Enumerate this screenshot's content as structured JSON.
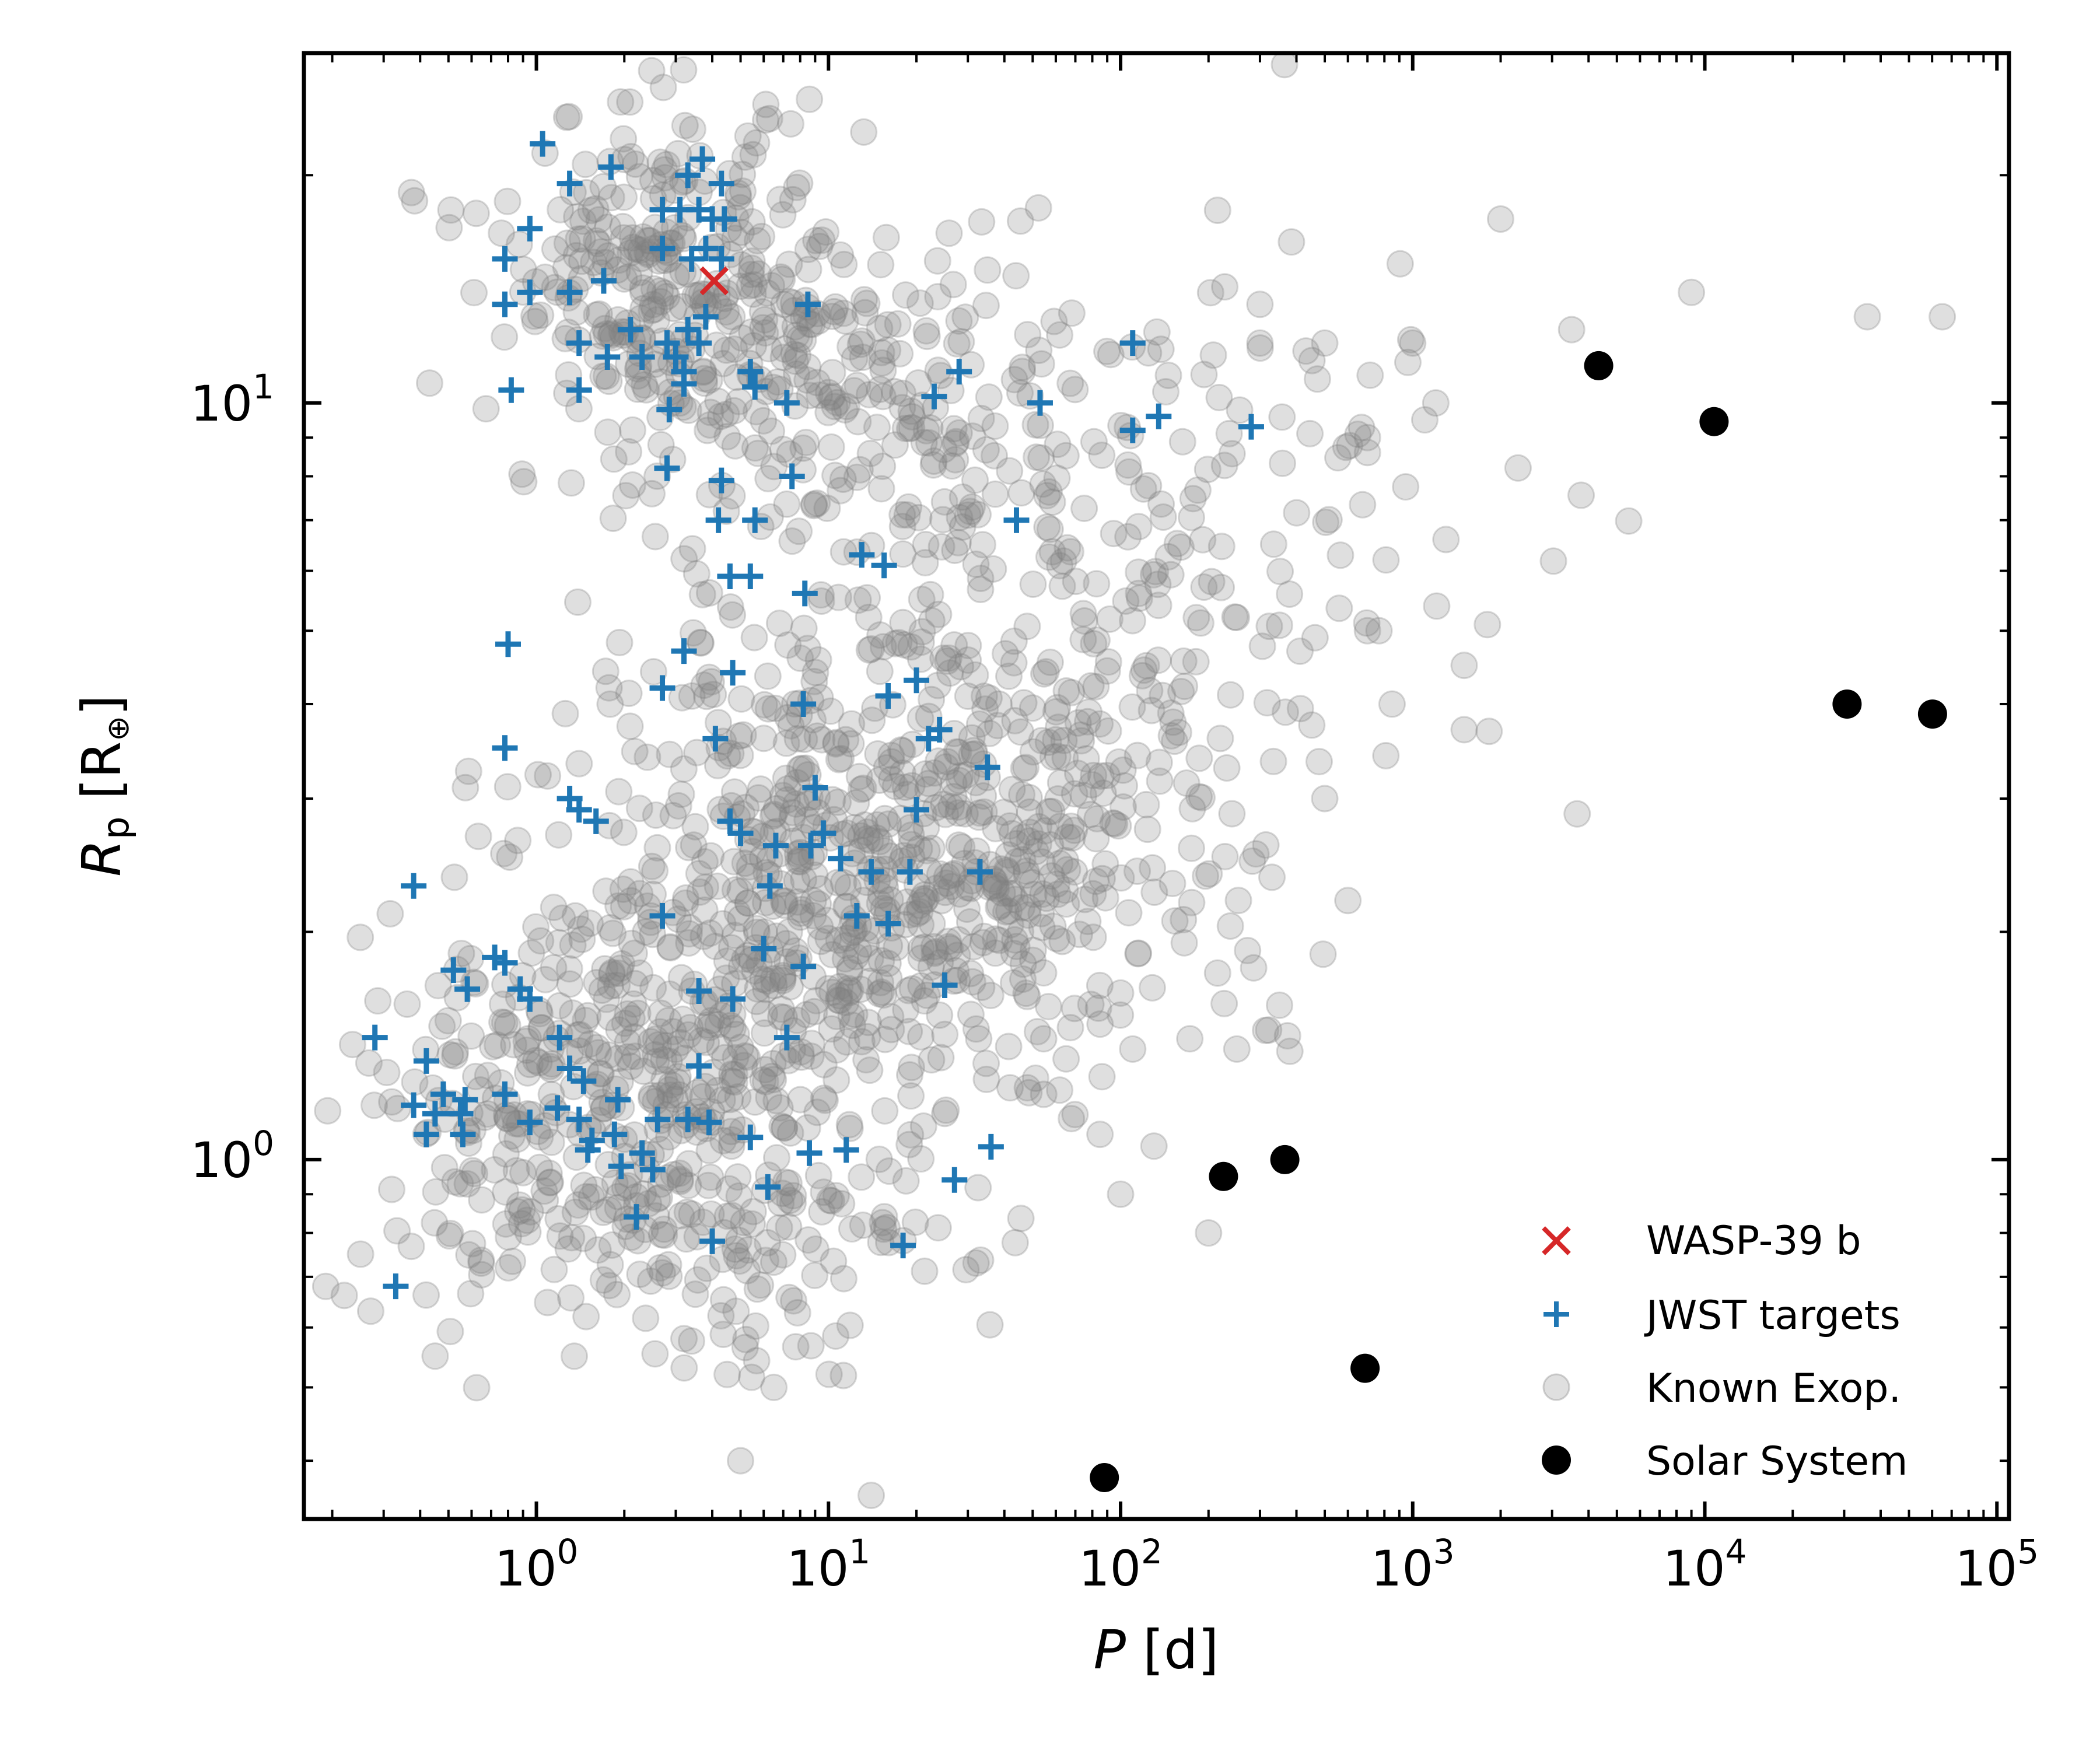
{
  "chart_data": {
    "type": "scatter",
    "xlabel": {
      "var": "P",
      "unit": "[d]"
    },
    "ylabel": {
      "var": "R",
      "sub": "p",
      "unit_open": "[R",
      "unit_sub": "⊕",
      "unit_close": "]"
    },
    "x_scale": "log",
    "y_scale": "log",
    "xlim": [
      0.16,
      110000
    ],
    "ylim": [
      0.335,
      29
    ],
    "x_ticks": [
      {
        "base": "10",
        "exp": "0",
        "value": 1
      },
      {
        "base": "10",
        "exp": "1",
        "value": 10
      },
      {
        "base": "10",
        "exp": "2",
        "value": 100
      },
      {
        "base": "10",
        "exp": "3",
        "value": 1000
      },
      {
        "base": "10",
        "exp": "4",
        "value": 10000
      },
      {
        "base": "10",
        "exp": "5",
        "value": 100000
      }
    ],
    "y_ticks": [
      {
        "base": "10",
        "exp": "0",
        "value": 1
      },
      {
        "base": "10",
        "exp": "1",
        "value": 10
      }
    ],
    "grid": false,
    "legend_position": "lower-right",
    "series": [
      {
        "name": "Known Exop.",
        "marker": "circle",
        "color": "#808080",
        "opacity": 0.25,
        "clusters": [
          {
            "cx": 2.7,
            "cy": 1.25,
            "sx": 0.38,
            "sy": 0.12,
            "n": 320
          },
          {
            "cx": 12.0,
            "cy": 2.3,
            "sx": 0.55,
            "sy": 0.17,
            "n": 560
          },
          {
            "cx": 40.0,
            "cy": 2.7,
            "sx": 0.5,
            "sy": 0.16,
            "n": 220
          },
          {
            "cx": 2.6,
            "cy": 15.5,
            "sx": 0.28,
            "sy": 0.1,
            "n": 210
          },
          {
            "cx": 5.0,
            "cy": 11.5,
            "sx": 0.35,
            "sy": 0.09,
            "n": 140
          },
          {
            "cx": 30.0,
            "cy": 10.0,
            "sx": 0.6,
            "sy": 0.1,
            "n": 160
          },
          {
            "cx": 60.0,
            "cy": 5.5,
            "sx": 0.6,
            "sy": 0.13,
            "n": 140
          },
          {
            "cx": 400.0,
            "cy": 7.0,
            "sx": 0.55,
            "sy": 0.25,
            "n": 40
          },
          {
            "cx": 0.6,
            "cy": 1.1,
            "sx": 0.25,
            "sy": 0.12,
            "n": 80
          },
          {
            "cx": 4.0,
            "cy": 0.75,
            "sx": 0.35,
            "sy": 0.08,
            "n": 90
          }
        ],
        "points": [
          [
            2000,
            17.5
          ],
          [
            3500,
            12.5
          ],
          [
            9000,
            14.0
          ],
          [
            36000,
            13.0
          ],
          [
            65000,
            13.0
          ],
          [
            700,
            9.0
          ],
          [
            1200,
            10.0
          ],
          [
            1000,
            12.0
          ],
          [
            500,
            12.0
          ],
          [
            300,
            12.0
          ],
          [
            1500,
            4.5
          ],
          [
            700,
            5.0
          ],
          [
            850,
            4.0
          ],
          [
            500,
            3.0
          ],
          [
            600,
            2.2
          ],
          [
            350,
            1.6
          ],
          [
            250,
            1.4
          ],
          [
            110,
            1.4
          ],
          [
            85,
            1.08
          ],
          [
            0.25,
            0.75
          ],
          [
            0.19,
            0.68
          ],
          [
            0.45,
            0.55
          ],
          [
            5.0,
            0.4
          ],
          [
            3.2,
            0.58
          ],
          [
            14,
            0.36
          ],
          [
            6.5,
            0.5
          ],
          [
            4.5,
            0.52
          ],
          [
            200,
            0.8
          ],
          [
            32,
            0.73
          ],
          [
            100,
            0.9
          ],
          [
            1300,
            6.6
          ],
          [
            700,
            8.6
          ],
          [
            1100,
            9.5
          ],
          [
            300,
            13.5
          ],
          [
            1500,
            3.7
          ]
        ]
      },
      {
        "name": "JWST targets",
        "marker": "plus",
        "color": "#1f77b4",
        "points": [
          [
            1.05,
            22.0
          ],
          [
            1.3,
            19.5
          ],
          [
            1.8,
            20.5
          ],
          [
            3.3,
            20.0
          ],
          [
            3.7,
            21.0
          ],
          [
            4.3,
            19.5
          ],
          [
            2.7,
            18.0
          ],
          [
            3.1,
            18.0
          ],
          [
            3.6,
            18.0
          ],
          [
            4.0,
            17.5
          ],
          [
            4.4,
            17.5
          ],
          [
            0.95,
            17.0
          ],
          [
            0.78,
            15.5
          ],
          [
            0.78,
            13.5
          ],
          [
            0.95,
            14.0
          ],
          [
            1.3,
            14.0
          ],
          [
            1.7,
            14.5
          ],
          [
            2.7,
            16.0
          ],
          [
            3.4,
            15.5
          ],
          [
            3.8,
            16.0
          ],
          [
            4.3,
            15.5
          ],
          [
            2.1,
            12.5
          ],
          [
            2.3,
            11.5
          ],
          [
            2.8,
            12.0
          ],
          [
            3.0,
            11.5
          ],
          [
            3.3,
            12.5
          ],
          [
            3.6,
            12.0
          ],
          [
            3.2,
            11.0
          ],
          [
            8.5,
            13.5
          ],
          [
            1.4,
            12.0
          ],
          [
            1.75,
            11.5
          ],
          [
            3.8,
            13.0
          ],
          [
            5.4,
            11.0
          ],
          [
            5.6,
            10.5
          ],
          [
            7.2,
            10.0
          ],
          [
            0.82,
            10.4
          ],
          [
            1.4,
            10.4
          ],
          [
            2.85,
            9.8
          ],
          [
            3.2,
            10.6
          ],
          [
            23,
            10.2
          ],
          [
            28,
            11.0
          ],
          [
            53,
            10.0
          ],
          [
            110,
            12.0
          ],
          [
            110,
            9.2
          ],
          [
            135,
            9.6
          ],
          [
            280,
            9.3
          ],
          [
            2.8,
            8.2
          ],
          [
            4.3,
            7.9
          ],
          [
            7.5,
            8.0
          ],
          [
            4.2,
            7.0
          ],
          [
            5.6,
            7.0
          ],
          [
            44,
            7.0
          ],
          [
            13,
            6.3
          ],
          [
            15.5,
            6.1
          ],
          [
            4.6,
            5.9
          ],
          [
            5.4,
            5.9
          ],
          [
            8.3,
            5.6
          ],
          [
            0.8,
            4.8
          ],
          [
            3.2,
            4.7
          ],
          [
            4.7,
            4.4
          ],
          [
            2.7,
            4.2
          ],
          [
            8.2,
            4.0
          ],
          [
            16,
            4.1
          ],
          [
            20,
            4.3
          ],
          [
            4.1,
            3.6
          ],
          [
            22,
            3.6
          ],
          [
            24,
            3.7
          ],
          [
            0.78,
            3.5
          ],
          [
            35,
            3.3
          ],
          [
            1.3,
            3.0
          ],
          [
            1.4,
            2.9
          ],
          [
            1.6,
            2.8
          ],
          [
            9,
            3.1
          ],
          [
            20,
            2.9
          ],
          [
            4.6,
            2.8
          ],
          [
            5.0,
            2.7
          ],
          [
            6.6,
            2.6
          ],
          [
            8.7,
            2.6
          ],
          [
            9.6,
            2.7
          ],
          [
            11,
            2.5
          ],
          [
            14,
            2.4
          ],
          [
            19,
            2.4
          ],
          [
            33,
            2.4
          ],
          [
            0.38,
            2.3
          ],
          [
            6.3,
            2.3
          ],
          [
            2.7,
            2.1
          ],
          [
            12.5,
            2.1
          ],
          [
            16,
            2.05
          ],
          [
            0.72,
            1.85
          ],
          [
            0.78,
            1.82
          ],
          [
            0.52,
            1.78
          ],
          [
            6.0,
            1.9
          ],
          [
            8.2,
            1.8
          ],
          [
            0.58,
            1.68
          ],
          [
            0.88,
            1.68
          ],
          [
            0.95,
            1.63
          ],
          [
            3.6,
            1.67
          ],
          [
            4.7,
            1.63
          ],
          [
            25,
            1.7
          ],
          [
            0.28,
            1.45
          ],
          [
            1.2,
            1.45
          ],
          [
            7.2,
            1.45
          ],
          [
            0.42,
            1.35
          ],
          [
            1.3,
            1.32
          ],
          [
            1.45,
            1.27
          ],
          [
            3.6,
            1.33
          ],
          [
            0.48,
            1.22
          ],
          [
            0.78,
            1.22
          ],
          [
            0.57,
            1.2
          ],
          [
            1.9,
            1.2
          ],
          [
            0.38,
            1.18
          ],
          [
            0.45,
            1.15
          ],
          [
            0.55,
            1.15
          ],
          [
            0.95,
            1.12
          ],
          [
            1.18,
            1.17
          ],
          [
            1.4,
            1.13
          ],
          [
            2.6,
            1.13
          ],
          [
            3.3,
            1.13
          ],
          [
            3.9,
            1.12
          ],
          [
            0.42,
            1.08
          ],
          [
            0.56,
            1.08
          ],
          [
            1.55,
            1.06
          ],
          [
            1.85,
            1.08
          ],
          [
            5.4,
            1.07
          ],
          [
            1.5,
            1.03
          ],
          [
            2.3,
            1.02
          ],
          [
            11.5,
            1.03
          ],
          [
            36,
            1.04
          ],
          [
            8.6,
            1.02
          ],
          [
            2.5,
            0.97
          ],
          [
            1.95,
            0.98
          ],
          [
            27,
            0.94
          ],
          [
            6.2,
            0.92
          ],
          [
            2.2,
            0.84
          ],
          [
            4.0,
            0.78
          ],
          [
            18,
            0.77
          ],
          [
            0.33,
            0.68
          ]
        ]
      },
      {
        "name": "WASP-39 b",
        "marker": "x",
        "color": "#d62728",
        "points": [
          [
            4.06,
            14.5
          ]
        ]
      },
      {
        "name": "Solar System",
        "marker": "dot",
        "color": "#000000",
        "points": [
          [
            88,
            0.38
          ],
          [
            225,
            0.95
          ],
          [
            365,
            1.0
          ],
          [
            687,
            0.53
          ],
          [
            4333,
            11.2
          ],
          [
            10759,
            9.45
          ],
          [
            30687,
            4.0
          ],
          [
            60190,
            3.88
          ]
        ]
      }
    ]
  }
}
